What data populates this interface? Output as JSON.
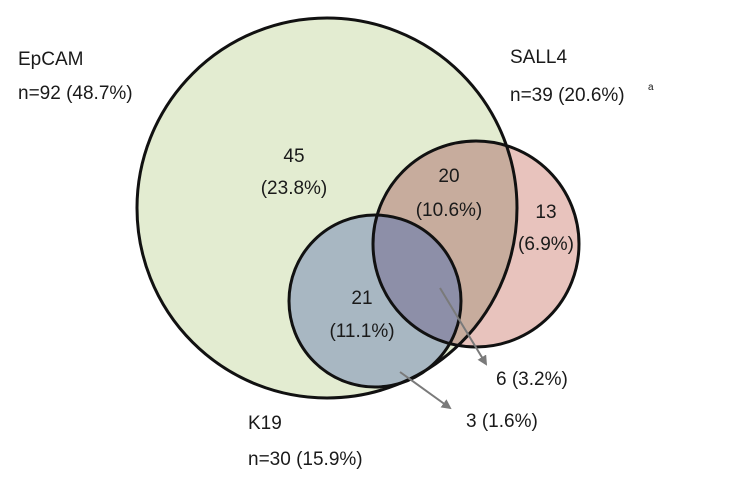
{
  "sets": {
    "epcam": {
      "name": "EpCAM",
      "count": "n=92 (48.7%)",
      "color": "#e3ecd1"
    },
    "sall4": {
      "name": "SALL4",
      "count": "n=39 (20.6%)",
      "superscript": "a",
      "color": "#e8c3bd"
    },
    "k19": {
      "name": "K19",
      "count": "n=30 (15.9%)",
      "color": "#b9cddd"
    }
  },
  "regions": {
    "epcam_only": {
      "value": "45",
      "pct": "(23.8%)"
    },
    "epcam_sall4": {
      "value": "20",
      "pct": "(10.6%)"
    },
    "sall4_only": {
      "value": "13",
      "pct": "(6.9%)"
    },
    "epcam_k19": {
      "value": "21",
      "pct": "(11.1%)"
    },
    "all_three": {
      "label": "6 (3.2%)"
    },
    "k19_only": {
      "label": "3 (1.6%)"
    }
  },
  "colors": {
    "outline": "#111111",
    "arrow": "#7a7a7a",
    "epcam_sall4_overlap": "#c7ac9d",
    "epcam_k19_overlap": "#a8b7c2",
    "triple_overlap": "#8d8fa8"
  }
}
